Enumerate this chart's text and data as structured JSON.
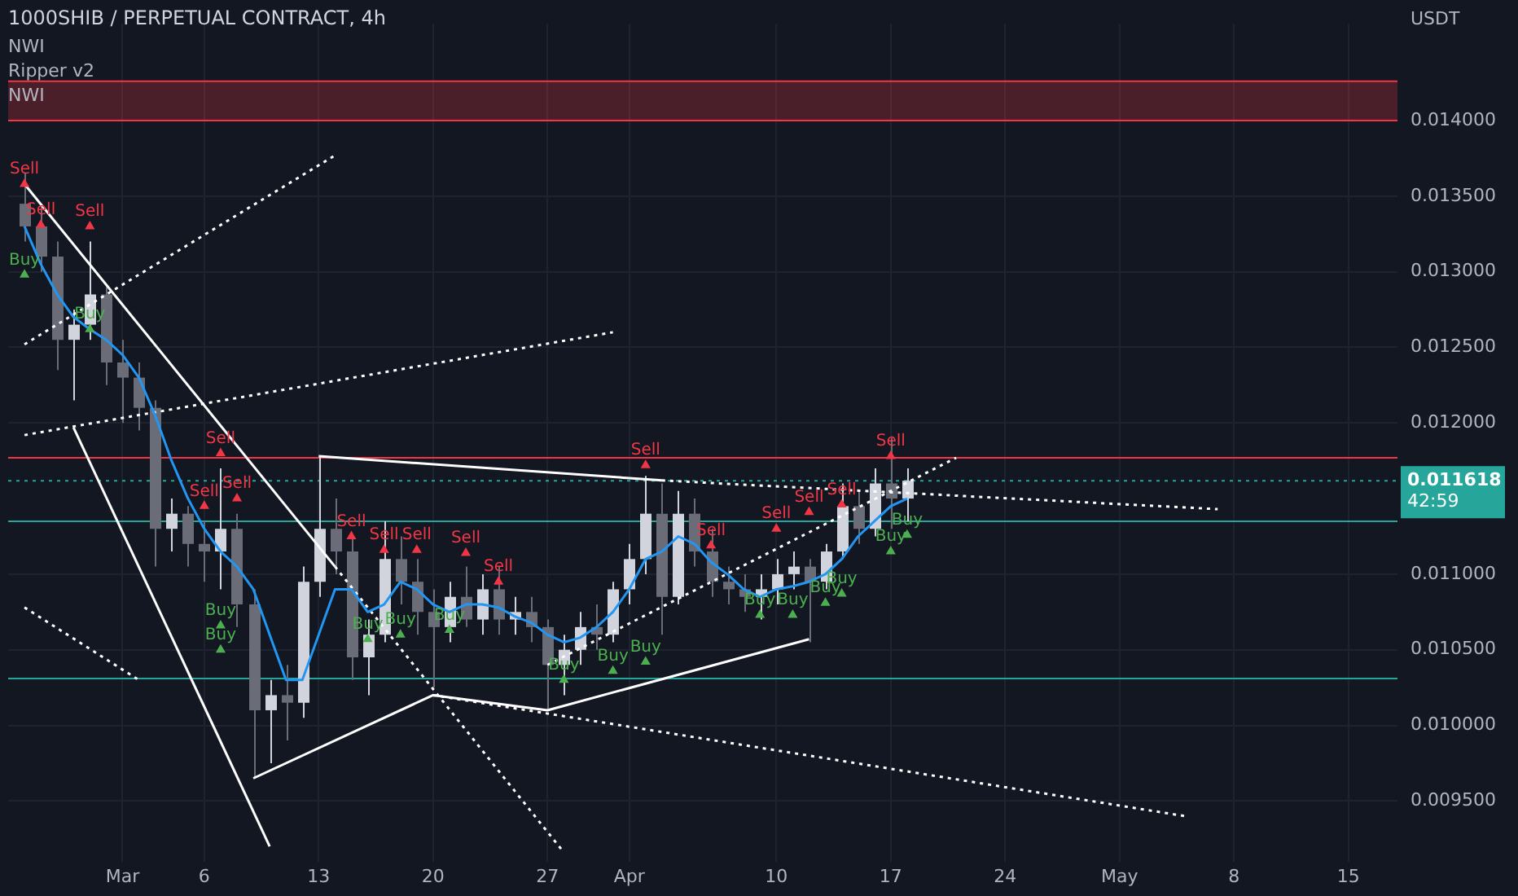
{
  "chart_data": {
    "type": "candlestick",
    "title": "1000SHIB / PERPETUAL CONTRACT, 4h",
    "ylabel": "USDT",
    "marker": "none",
    "grid": true,
    "annotations": [
      "NWI",
      "Ripper v2",
      "NWI"
    ],
    "xlim": [
      "--02-22",
      "--05-18"
    ],
    "xticks": [
      {
        "value": "--03-01",
        "label": "Mar"
      },
      {
        "value": "--03-06",
        "label": "6"
      },
      {
        "value": "--03-13",
        "label": "13"
      },
      {
        "value": "--03-20",
        "label": "20"
      },
      {
        "value": "--03-27",
        "label": "27"
      },
      {
        "value": "--04-01",
        "label": "Apr"
      },
      {
        "value": "--04-10",
        "label": "10"
      },
      {
        "value": "--04-17",
        "label": "17"
      },
      {
        "value": "--04-24",
        "label": "24"
      },
      {
        "value": "--05-01",
        "label": "May"
      },
      {
        "value": "--05-08",
        "label": "8"
      },
      {
        "value": "--05-15",
        "label": "15"
      }
    ],
    "ylim": [
      0.0091,
      0.01464
    ],
    "yticks": [
      {
        "value": 0.0095,
        "label": "0.009500"
      },
      {
        "value": 0.01,
        "label": "0.010000"
      },
      {
        "value": 0.0105,
        "label": "0.010500"
      },
      {
        "value": 0.011,
        "label": "0.011000"
      },
      {
        "value": 0.012,
        "label": "0.012000"
      },
      {
        "value": 0.0125,
        "label": "0.012500"
      },
      {
        "value": 0.013,
        "label": "0.013000"
      },
      {
        "value": 0.0135,
        "label": "0.013500"
      },
      {
        "value": 0.014,
        "label": "0.014000"
      }
    ],
    "bands": [
      {
        "axis": "y",
        "from": 0.014,
        "to": 0.01426,
        "color": "#f23645"
      }
    ],
    "ref_lines": [
      {
        "axis": "y",
        "value": 0.014,
        "color": "#f23645",
        "line_style": "solid"
      },
      {
        "axis": "y",
        "value": 0.01426,
        "color": "#f23645",
        "line_style": "solid"
      },
      {
        "axis": "y",
        "value": 0.01177,
        "color": "#f23645",
        "line_style": "solid"
      },
      {
        "axis": "y",
        "value": 0.01135,
        "color": "#26a69a",
        "line_style": "solid"
      },
      {
        "axis": "y",
        "value": 0.01031,
        "color": "#26a69a",
        "line_style": "solid"
      },
      {
        "axis": "y",
        "value": 0.011618,
        "label": "0.011618\n42:59",
        "color": "#26a69a",
        "line_style": "dotted"
      }
    ],
    "x": [
      "--02-23",
      "--02-24",
      "--02-25",
      "--02-26",
      "--02-27",
      "--02-28",
      "--03-01",
      "--03-02",
      "--03-03",
      "--03-04",
      "--03-05",
      "--03-06",
      "--03-07",
      "--03-08",
      "--03-09",
      "--03-10",
      "--03-11",
      "--03-12",
      "--03-13",
      "--03-14",
      "--03-15",
      "--03-16",
      "--03-17",
      "--03-18",
      "--03-19",
      "--03-20",
      "--03-21",
      "--03-22",
      "--03-23",
      "--03-24",
      "--03-25",
      "--03-26",
      "--03-27",
      "--03-28",
      "--03-29",
      "--03-30",
      "--03-31",
      "--04-01",
      "--04-02",
      "--04-03",
      "--04-04",
      "--04-05",
      "--04-06",
      "--04-07",
      "--04-08",
      "--04-09",
      "--04-10",
      "--04-11",
      "--04-12",
      "--04-13",
      "--04-14",
      "--04-15",
      "--04-16",
      "--04-17",
      "--04-18"
    ],
    "series": [
      {
        "type": "candlestick",
        "colors": [
          "#6a6d78",
          "#6a6d78",
          "#6a6d78",
          "#d1d4dc",
          "#d1d4dc",
          "#6a6d78",
          "#6a6d78",
          "#6a6d78",
          "#6a6d78",
          "#d1d4dc",
          "#6a6d78",
          "#6a6d78",
          "#d1d4dc",
          "#6a6d78",
          "#6a6d78",
          "#d1d4dc",
          "#6a6d78",
          "#d1d4dc",
          "#d1d4dc",
          "#6a6d78",
          "#6a6d78",
          "#d1d4dc",
          "#d1d4dc",
          "#6a6d78",
          "#6a6d78",
          "#6a6d78",
          "#d1d4dc",
          "#6a6d78",
          "#d1d4dc",
          "#6a6d78",
          "#d1d4dc",
          "#6a6d78",
          "#6a6d78",
          "#d1d4dc",
          "#d1d4dc",
          "#6a6d78",
          "#d1d4dc",
          "#d1d4dc",
          "#d1d4dc",
          "#6a6d78",
          "#d1d4dc",
          "#6a6d78",
          "#6a6d78",
          "#6a6d78",
          "#6a6d78",
          "#d1d4dc",
          "#d1d4dc",
          "#d1d4dc",
          "#6a6d78",
          "#d1d4dc",
          "#d1d4dc",
          "#6a6d78",
          "#d1d4dc",
          "#6a6d78",
          "#d1d4dc"
        ],
        "ohlc": [
          [
            0.01345,
            0.01365,
            0.0132,
            0.0133
          ],
          [
            0.0133,
            0.01345,
            0.013,
            0.0131
          ],
          [
            0.0131,
            0.0132,
            0.01235,
            0.01255
          ],
          [
            0.01255,
            0.01275,
            0.01215,
            0.01265
          ],
          [
            0.01265,
            0.0132,
            0.01255,
            0.01285
          ],
          [
            0.01285,
            0.0129,
            0.01225,
            0.0124
          ],
          [
            0.0124,
            0.01255,
            0.012,
            0.0123
          ],
          [
            0.0123,
            0.0124,
            0.01195,
            0.0121
          ],
          [
            0.0121,
            0.01215,
            0.01105,
            0.0113
          ],
          [
            0.0113,
            0.0115,
            0.01115,
            0.0114
          ],
          [
            0.0114,
            0.01145,
            0.01105,
            0.0112
          ],
          [
            0.0112,
            0.01135,
            0.01095,
            0.01115
          ],
          [
            0.01115,
            0.0117,
            0.0109,
            0.0113
          ],
          [
            0.0113,
            0.0114,
            0.01065,
            0.0108
          ],
          [
            0.0108,
            0.0109,
            0.00965,
            0.0101
          ],
          [
            0.0101,
            0.0103,
            0.00975,
            0.0102
          ],
          [
            0.0102,
            0.0104,
            0.0099,
            0.01015
          ],
          [
            0.01015,
            0.01105,
            0.01005,
            0.01095
          ],
          [
            0.01095,
            0.01178,
            0.01085,
            0.0113
          ],
          [
            0.0113,
            0.0115,
            0.011,
            0.01115
          ],
          [
            0.01115,
            0.01125,
            0.0103,
            0.01045
          ],
          [
            0.01045,
            0.0107,
            0.0102,
            0.0106
          ],
          [
            0.0106,
            0.01135,
            0.01055,
            0.0111
          ],
          [
            0.0111,
            0.01125,
            0.0108,
            0.01095
          ],
          [
            0.01095,
            0.0111,
            0.0106,
            0.01075
          ],
          [
            0.01075,
            0.0109,
            0.01025,
            0.01065
          ],
          [
            0.01065,
            0.01095,
            0.01055,
            0.01085
          ],
          [
            0.01085,
            0.01105,
            0.01065,
            0.0107
          ],
          [
            0.0107,
            0.011,
            0.0106,
            0.0109
          ],
          [
            0.0109,
            0.01105,
            0.0106,
            0.0107
          ],
          [
            0.0107,
            0.01085,
            0.0106,
            0.01075
          ],
          [
            0.01075,
            0.01085,
            0.01055,
            0.01065
          ],
          [
            0.01065,
            0.0107,
            0.0101,
            0.0104
          ],
          [
            0.0104,
            0.0106,
            0.0102,
            0.0105
          ],
          [
            0.0105,
            0.01075,
            0.0104,
            0.01065
          ],
          [
            0.01065,
            0.0108,
            0.0105,
            0.0106
          ],
          [
            0.0106,
            0.01095,
            0.01055,
            0.0109
          ],
          [
            0.0109,
            0.0112,
            0.0108,
            0.0111
          ],
          [
            0.0111,
            0.01165,
            0.011,
            0.0114
          ],
          [
            0.0114,
            0.0116,
            0.0106,
            0.01085
          ],
          [
            0.01085,
            0.01155,
            0.0108,
            0.0114
          ],
          [
            0.0114,
            0.0115,
            0.01105,
            0.01115
          ],
          [
            0.01115,
            0.0113,
            0.01085,
            0.01095
          ],
          [
            0.01095,
            0.01105,
            0.0108,
            0.0109
          ],
          [
            0.0109,
            0.011,
            0.01075,
            0.01085
          ],
          [
            0.01085,
            0.011,
            0.0107,
            0.0109
          ],
          [
            0.0109,
            0.0111,
            0.0108,
            0.011
          ],
          [
            0.011,
            0.01115,
            0.0109,
            0.01105
          ],
          [
            0.01105,
            0.0111,
            0.01055,
            0.01095
          ],
          [
            0.01095,
            0.0112,
            0.0109,
            0.01115
          ],
          [
            0.01115,
            0.0116,
            0.0111,
            0.01145
          ],
          [
            0.01145,
            0.01155,
            0.0112,
            0.0113
          ],
          [
            0.0113,
            0.0117,
            0.01125,
            0.0116
          ],
          [
            0.0116,
            0.0119,
            0.0113,
            0.0115
          ],
          [
            0.0115,
            0.0117,
            0.01135,
            0.011618
          ]
        ]
      },
      {
        "type": "line",
        "color": "#2196f3",
        "values": [
          0.0133,
          0.01305,
          0.01285,
          0.0127,
          0.01262,
          0.01255,
          0.01245,
          0.0123,
          0.01205,
          0.01175,
          0.0115,
          0.0113,
          0.01115,
          0.01105,
          0.0109,
          0.0106,
          0.0103,
          0.0103,
          0.0106,
          0.0109,
          0.0109,
          0.01075,
          0.0108,
          0.01095,
          0.0109,
          0.0108,
          0.01075,
          0.0108,
          0.0108,
          0.01078,
          0.01072,
          0.01068,
          0.0106,
          0.01055,
          0.01058,
          0.01065,
          0.01075,
          0.0109,
          0.0111,
          0.01115,
          0.01125,
          0.0112,
          0.01108,
          0.011,
          0.0109,
          0.01085,
          0.0109,
          0.01092,
          0.01095,
          0.011,
          0.0111,
          0.01125,
          0.01135,
          0.01145,
          0.0115
        ]
      },
      {
        "type": "line",
        "color": "#ffffff",
        "line_style": "solid",
        "x": [
          "--02-23",
          "--03-14"
        ],
        "values": [
          0.01358,
          0.01105
        ]
      },
      {
        "type": "line",
        "color": "#ffffff",
        "line_style": "dotted",
        "x": [
          "--03-14",
          "--03-28"
        ],
        "values": [
          0.01105,
          0.00916
        ]
      },
      {
        "type": "line",
        "color": "#ffffff",
        "line_style": "solid",
        "x": [
          "--02-26",
          "--03-10"
        ],
        "values": [
          0.01197,
          0.0092
        ]
      },
      {
        "type": "line",
        "color": "#ffffff",
        "line_style": "dotted",
        "x": [
          "--02-23",
          "--03-31"
        ],
        "values": [
          0.01192,
          0.0126
        ]
      },
      {
        "type": "line",
        "color": "#ffffff",
        "line_style": "dotted",
        "x": [
          "--02-23",
          "--03-14"
        ],
        "values": [
          0.01252,
          0.01377
        ]
      },
      {
        "type": "line",
        "color": "#ffffff",
        "line_style": "dotted",
        "x": [
          "--02-23",
          "--03-02"
        ],
        "values": [
          0.01078,
          0.0103
        ]
      },
      {
        "type": "line",
        "color": "#ffffff",
        "line_style": "solid",
        "x": [
          "--03-13",
          "--04-03"
        ],
        "values": [
          0.01178,
          0.01162
        ]
      },
      {
        "type": "line",
        "color": "#ffffff",
        "line_style": "dotted",
        "x": [
          "--04-03",
          "--05-07"
        ],
        "values": [
          0.01162,
          0.01143
        ]
      },
      {
        "type": "line",
        "color": "#ffffff",
        "line_style": "solid",
        "x": [
          "--03-09",
          "--03-20",
          "--03-27",
          "--04-12"
        ],
        "values": [
          0.00965,
          0.0102,
          0.0101,
          0.01057
        ]
      },
      {
        "type": "line",
        "color": "#ffffff",
        "line_style": "dotted",
        "x": [
          "--03-20",
          "--05-05"
        ],
        "values": [
          0.0102,
          0.0094
        ]
      },
      {
        "type": "line",
        "color": "#ffffff",
        "line_style": "dotted",
        "x": [
          "--03-27",
          "--04-21"
        ],
        "values": [
          0.0104,
          0.01177
        ]
      },
      {
        "type": "scatter",
        "color": "#f23645",
        "marker": "triangle",
        "x": [
          "--02-23",
          "--02-24",
          "--02-27",
          "--03-06",
          "--03-07",
          "--03-08",
          "--03-15",
          "--03-17",
          "--03-19",
          "--03-22",
          "--03-24",
          "--04-02",
          "--04-06",
          "--04-10",
          "--04-12",
          "--04-14",
          "--04-17"
        ],
        "values": [
          0.01358,
          0.01331,
          0.0133,
          0.01145,
          0.0118,
          0.0115,
          0.01125,
          0.01116,
          0.01116,
          0.01114,
          0.01095,
          0.01172,
          0.01119,
          0.0113,
          0.01141,
          0.01146,
          0.01178
        ],
        "value_labels": [
          "Sell",
          "Sell",
          "Sell",
          "Sell",
          "Sell",
          "Sell",
          "Sell",
          "Sell",
          "Sell",
          "Sell",
          "Sell",
          "Sell",
          "Sell",
          "Sell",
          "Sell",
          "Sell",
          "Sell"
        ]
      },
      {
        "type": "scatter",
        "color": "#4caf50",
        "marker": "triangle",
        "x": [
          "--02-23",
          "--02-27",
          "--03-07",
          "--03-07",
          "--03-16",
          "--03-18",
          "--03-21",
          "--03-28",
          "--03-31",
          "--04-02",
          "--04-09",
          "--04-11",
          "--04-13",
          "--04-14",
          "--04-17",
          "--04-18"
        ],
        "values": [
          0.01298,
          0.01262,
          0.01066,
          0.0105,
          0.01057,
          0.0106,
          0.01063,
          0.0103,
          0.01036,
          0.01042,
          0.01073,
          0.01073,
          0.01081,
          0.01087,
          0.01115,
          0.01126
        ],
        "value_labels": [
          "Buy",
          "Buy",
          "Buy",
          "Buy",
          "Buy",
          "Buy",
          "Buy",
          "Buy",
          "Buy",
          "Buy",
          "Buy",
          "Buy",
          "Buy",
          "Buy",
          "Buy",
          "Buy"
        ]
      }
    ]
  }
}
